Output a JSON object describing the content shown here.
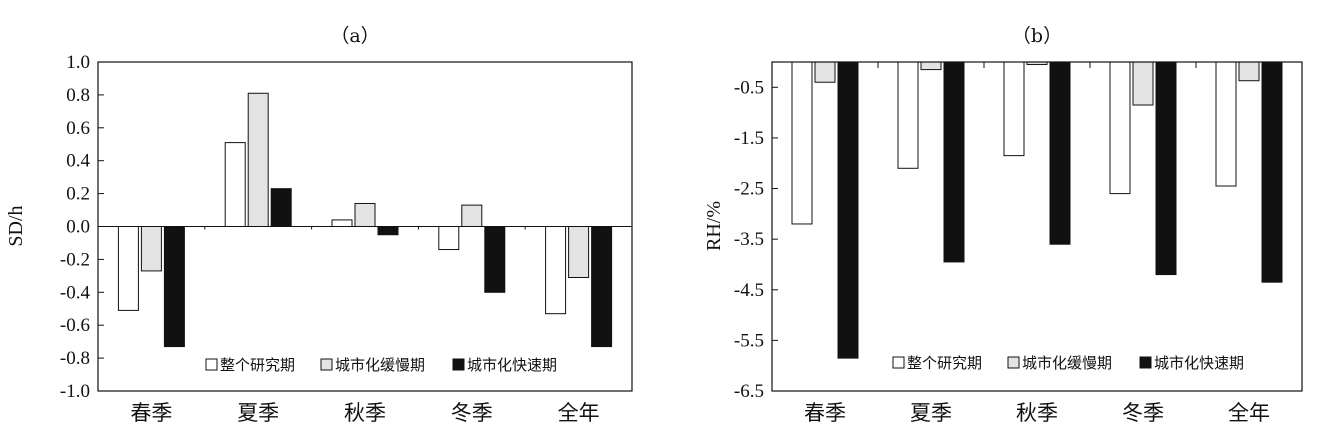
{
  "chart_data": [
    {
      "type": "bar",
      "title": "（a）",
      "xlabel": "",
      "ylabel": "SD/h",
      "ylim": [
        -1.0,
        1.0
      ],
      "yticks": [
        "1.0",
        "0.8",
        "0.6",
        "0.4",
        "0.2",
        "0.0",
        "-0.2",
        "-0.4",
        "-0.6",
        "-0.8",
        "-1.0"
      ],
      "categories": [
        "春季",
        "夏季",
        "秋季",
        "冬季",
        "全年"
      ],
      "series": [
        {
          "name": "整个研究期",
          "color": "#ffffff",
          "values": [
            -0.51,
            0.51,
            0.04,
            -0.14,
            -0.53
          ]
        },
        {
          "name": "城市化缓慢期",
          "color": "#e3e3e3",
          "values": [
            -0.27,
            0.81,
            0.14,
            0.13,
            -0.31
          ]
        },
        {
          "name": "城市化快速期",
          "color": "#111111",
          "values": [
            -0.73,
            0.23,
            -0.05,
            -0.4,
            -0.73
          ]
        }
      ],
      "legend_position": "bottom-right",
      "grid": false
    },
    {
      "type": "bar",
      "title": "（b）",
      "xlabel": "",
      "ylabel": "RH/%",
      "ylim": [
        -6.5,
        0
      ],
      "yticks": [
        "-0.5",
        "-1.5",
        "-2.5",
        "-3.5",
        "-4.5",
        "-5.5",
        "-6.5"
      ],
      "categories": [
        "春季",
        "夏季",
        "秋季",
        "冬季",
        "全年"
      ],
      "series": [
        {
          "name": "整个研究期",
          "color": "#ffffff",
          "values": [
            -3.2,
            -2.1,
            -1.85,
            -2.6,
            -2.45
          ]
        },
        {
          "name": "城市化缓慢期",
          "color": "#e3e3e3",
          "values": [
            -0.4,
            -0.15,
            -0.05,
            -0.85,
            -0.37
          ]
        },
        {
          "name": "城市化快速期",
          "color": "#111111",
          "values": [
            -5.85,
            -3.95,
            -3.6,
            -4.2,
            -4.35
          ]
        }
      ],
      "legend_position": "bottom-right",
      "grid": false
    }
  ]
}
